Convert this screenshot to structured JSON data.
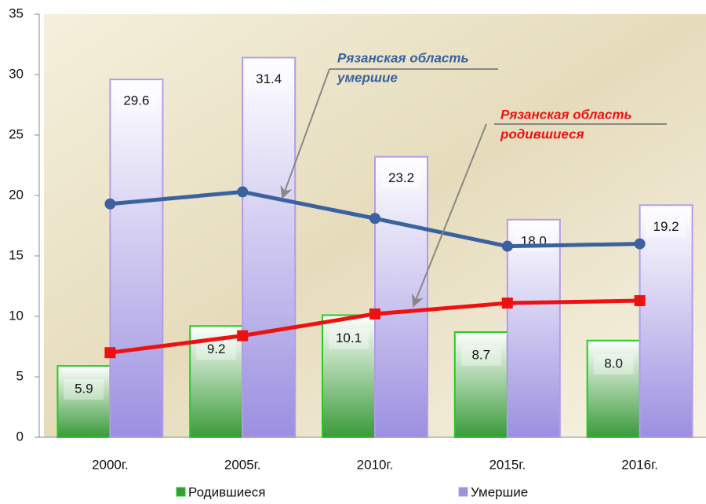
{
  "chart_data": {
    "type": "bar",
    "categories": [
      "2000г.",
      "2005г.",
      "2010г.",
      "2015г.",
      "2016г."
    ],
    "series": [
      {
        "name": "Родившиеся",
        "color": "#3a9a3a",
        "values": [
          5.9,
          9.2,
          10.1,
          8.7,
          8.0
        ]
      },
      {
        "name": "Умершие",
        "color": "#9b8fe0",
        "values": [
          29.6,
          31.4,
          23.2,
          18.0,
          19.2
        ]
      }
    ],
    "value_labels": [
      [
        "5.9",
        "9.2",
        "10.1",
        "8.7",
        "8.0"
      ],
      [
        "29.6",
        "31.4",
        "23.2",
        "18.0",
        "19.2"
      ]
    ],
    "lines": [
      {
        "color": "#3a62a0",
        "values": [
          19.3,
          20.3,
          18.1,
          15.8,
          16.0
        ]
      },
      {
        "color": "#ee1111",
        "values": [
          7.0,
          8.4,
          10.2,
          11.1,
          11.3
        ]
      }
    ],
    "annotations": [
      {
        "lines": [
          "Рязанская область",
          "умершие"
        ],
        "color": "#3a62a0"
      },
      {
        "lines": [
          "Рязанская область",
          "родившиеся"
        ],
        "color": "#ee1111"
      }
    ],
    "ylim": [
      0,
      35
    ],
    "yticks": [
      0,
      5,
      10,
      15,
      20,
      25,
      30,
      35
    ],
    "legend": "bottom"
  }
}
